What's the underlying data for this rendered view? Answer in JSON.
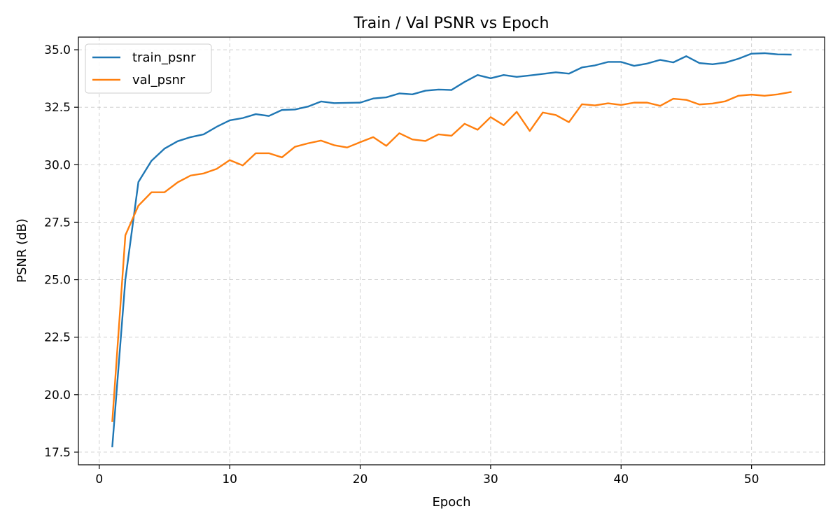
{
  "chart_data": {
    "type": "line",
    "title": "Train / Val PSNR vs Epoch",
    "xlabel": "Epoch",
    "ylabel": "PSNR (dB)",
    "xlim": [
      -1.6,
      55.6
    ],
    "ylim": [
      16.95,
      35.55
    ],
    "xticks": [
      0,
      10,
      20,
      30,
      40,
      50
    ],
    "yticks": [
      17.5,
      20.0,
      22.5,
      25.0,
      27.5,
      30.0,
      32.5,
      35.0
    ],
    "grid": true,
    "legend_position": "top-left",
    "x": [
      1,
      2,
      3,
      4,
      5,
      6,
      7,
      8,
      9,
      10,
      11,
      12,
      13,
      14,
      15,
      16,
      17,
      18,
      19,
      20,
      21,
      22,
      23,
      24,
      25,
      26,
      27,
      28,
      29,
      30,
      31,
      32,
      33,
      34,
      35,
      36,
      37,
      38,
      39,
      40,
      41,
      42,
      43,
      44,
      45,
      46,
      47,
      48,
      49,
      50,
      51,
      52,
      53
    ],
    "series": [
      {
        "name": "train_psnr",
        "color": "#1f77b4",
        "values": [
          17.75,
          25.0,
          29.25,
          30.17,
          30.7,
          31.02,
          31.2,
          31.32,
          31.65,
          31.93,
          32.03,
          32.2,
          32.12,
          32.38,
          32.4,
          32.53,
          32.75,
          32.68,
          32.69,
          32.7,
          32.88,
          32.93,
          33.1,
          33.06,
          33.22,
          33.27,
          33.25,
          33.6,
          33.9,
          33.76,
          33.9,
          33.82,
          33.88,
          33.95,
          34.02,
          33.96,
          34.23,
          34.32,
          34.47,
          34.47,
          34.3,
          34.4,
          34.56,
          34.45,
          34.72,
          34.42,
          34.37,
          34.44,
          34.61,
          34.83,
          34.85,
          34.8,
          34.79
        ]
      },
      {
        "name": "val_psnr",
        "color": "#ff7f0e",
        "values": [
          18.85,
          26.93,
          28.22,
          28.8,
          28.8,
          29.23,
          29.53,
          29.62,
          29.82,
          30.2,
          29.97,
          30.5,
          30.5,
          30.32,
          30.78,
          30.93,
          31.05,
          30.85,
          30.75,
          30.98,
          31.2,
          30.82,
          31.37,
          31.1,
          31.03,
          31.32,
          31.26,
          31.78,
          31.52,
          32.07,
          31.72,
          32.3,
          31.47,
          32.27,
          32.16,
          31.85,
          32.63,
          32.58,
          32.67,
          32.6,
          32.7,
          32.7,
          32.56,
          32.87,
          32.82,
          32.62,
          32.66,
          32.76,
          33.0,
          33.05,
          33.0,
          33.06,
          33.16
        ]
      }
    ]
  }
}
